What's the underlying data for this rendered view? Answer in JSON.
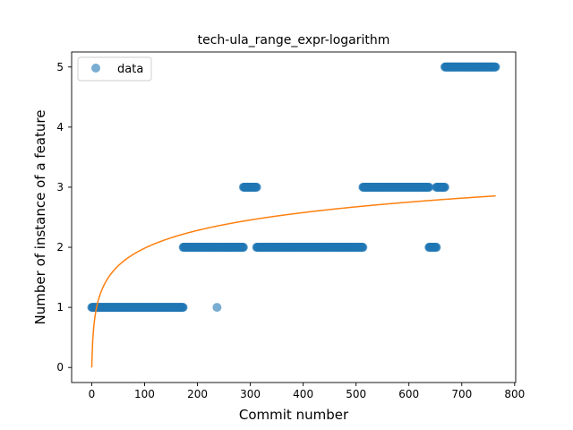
{
  "chart_data": {
    "type": "scatter",
    "title": "tech-ula_range_expr-logarithm",
    "xlabel": "Commit number",
    "ylabel": "Number of instance of a feature",
    "xlim": [
      -38,
      802
    ],
    "ylim": [
      -0.25,
      5.25
    ],
    "xticks": [
      0,
      100,
      200,
      300,
      400,
      500,
      600,
      700,
      800
    ],
    "yticks": [
      0,
      1,
      2,
      3,
      4,
      5
    ],
    "legend": {
      "position": "top-left",
      "entries": [
        {
          "label": "data",
          "color": "#1f77b4"
        }
      ]
    },
    "grid": false,
    "colors": {
      "data": "#1f77b4",
      "fit": "#ff7f0e"
    },
    "series": [
      {
        "name": "data",
        "kind": "scatter",
        "segments": [
          {
            "x_start": 0,
            "x_end": 173,
            "y": 1
          },
          {
            "x_start": 237,
            "x_end": 237,
            "y": 1
          },
          {
            "x_start": 173,
            "x_end": 287,
            "y": 2
          },
          {
            "x_start": 287,
            "x_end": 312,
            "y": 3
          },
          {
            "x_start": 312,
            "x_end": 513,
            "y": 2
          },
          {
            "x_start": 513,
            "x_end": 638,
            "y": 3
          },
          {
            "x_start": 638,
            "x_end": 652,
            "y": 2
          },
          {
            "x_start": 652,
            "x_end": 668,
            "y": 3
          },
          {
            "x_start": 668,
            "x_end": 764,
            "y": 5
          }
        ]
      },
      {
        "kind": "line",
        "formula": "0.43 * ln(x + 1)",
        "a": 0.43,
        "b": 1,
        "x_range": [
          0,
          764
        ]
      }
    ]
  }
}
